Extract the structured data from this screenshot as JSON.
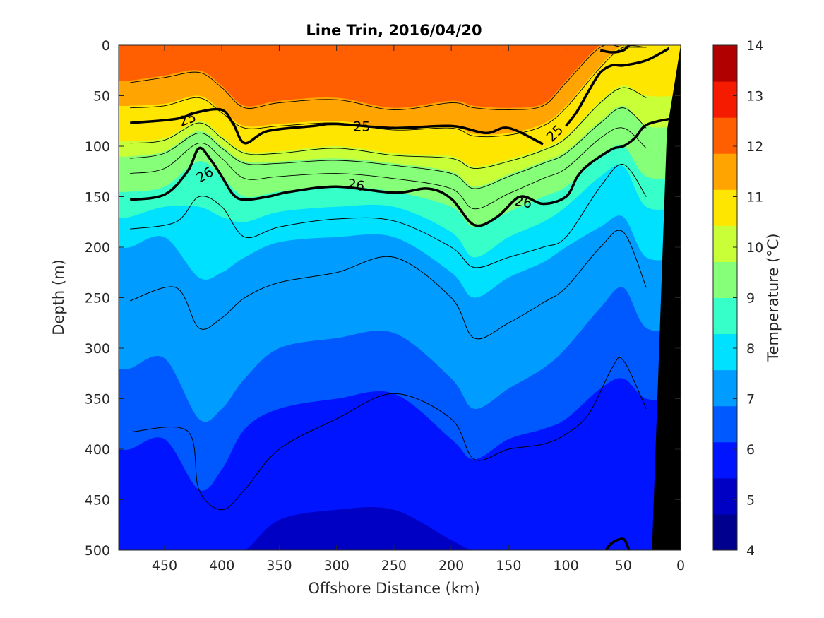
{
  "chart_data": {
    "type": "contour",
    "title": "Line Trin, 2016/04/20",
    "xlabel": "Offshore Distance (km)",
    "ylabel": "Depth (m)",
    "colorbar_label": "Temperature (°C)",
    "xlim": [
      490,
      0
    ],
    "ylim": [
      0,
      500
    ],
    "x_reversed": true,
    "y_reversed": true,
    "xticks": [
      "450",
      "400",
      "350",
      "300",
      "250",
      "200",
      "150",
      "100",
      "50",
      "0"
    ],
    "yticks": [
      "0",
      "50",
      "100",
      "150",
      "200",
      "250",
      "300",
      "350",
      "400",
      "450",
      "500"
    ],
    "colorbar_ticks": [
      "4",
      "5",
      "6",
      "7",
      "8",
      "9",
      "10",
      "11",
      "12",
      "13",
      "14"
    ],
    "colorbar_range": [
      4,
      14
    ],
    "colorbar_colors": [
      "#00008f",
      "#0000c4",
      "#0014ff",
      "#0059ff",
      "#009cff",
      "#00e0ff",
      "#36ffc9",
      "#86ff79",
      "#c9ff36",
      "#ffe600",
      "#ffa400",
      "#ff5f00",
      "#f51b00",
      "#b10000"
    ],
    "distance_km": [
      480,
      450,
      420,
      400,
      380,
      350,
      300,
      250,
      200,
      180,
      150,
      120,
      100,
      70,
      50,
      30
    ],
    "isotherm_depths_m": [
      {
        "temp": 5.5,
        "depths": [
          500,
          500,
          500,
          500,
          500,
          470,
          460,
          460,
          490,
          500,
          500,
          500,
          500,
          500,
          500,
          500
        ]
      },
      {
        "temp": 6.0,
        "depths": [
          465,
          450,
          470,
          460,
          440,
          420,
          410,
          410,
          440,
          460,
          440,
          430,
          430,
          450,
          460,
          470
        ]
      },
      {
        "temp": 6.5,
        "depths": [
          400,
          390,
          440,
          420,
          380,
          360,
          350,
          345,
          390,
          410,
          390,
          380,
          370,
          340,
          330,
          350
        ]
      },
      {
        "temp": 7.0,
        "depths": [
          320,
          310,
          370,
          360,
          330,
          300,
          290,
          285,
          330,
          360,
          340,
          320,
          300,
          260,
          240,
          280
        ]
      },
      {
        "temp": 7.5,
        "depths": [
          255,
          250,
          300,
          290,
          270,
          250,
          240,
          235,
          270,
          300,
          280,
          260,
          250,
          200,
          190,
          230
        ]
      },
      {
        "temp": 8.0,
        "depths": [
          200,
          190,
          230,
          225,
          210,
          195,
          190,
          190,
          225,
          250,
          230,
          215,
          200,
          180,
          170,
          210
        ]
      },
      {
        "temp": 8.5,
        "depths": [
          170,
          160,
          160,
          170,
          175,
          165,
          160,
          160,
          185,
          210,
          190,
          175,
          160,
          130,
          120,
          160
        ]
      },
      {
        "temp": 9.0,
        "depths": [
          145,
          140,
          115,
          130,
          150,
          145,
          140,
          145,
          160,
          180,
          165,
          150,
          140,
          110,
          100,
          130
        ]
      },
      {
        "temp": 9.5,
        "depths": [
          125,
          120,
          95,
          110,
          130,
          128,
          125,
          130,
          140,
          160,
          145,
          130,
          120,
          90,
          80,
          100
        ]
      },
      {
        "temp": 10.0,
        "depths": [
          110,
          105,
          85,
          100,
          115,
          115,
          112,
          117,
          125,
          140,
          128,
          115,
          105,
          75,
          60,
          80
        ]
      },
      {
        "temp": 10.5,
        "depths": [
          95,
          92,
          75,
          90,
          105,
          105,
          100,
          107,
          110,
          120,
          113,
          102,
          90,
          55,
          40,
          50
        ]
      },
      {
        "temp": 11.0,
        "depths": [
          80,
          78,
          65,
          80,
          95,
          92,
          90,
          95,
          95,
          105,
          100,
          90,
          75,
          40,
          20,
          25
        ]
      },
      {
        "temp": 11.5,
        "depths": [
          60,
          58,
          50,
          65,
          80,
          78,
          75,
          82,
          80,
          88,
          87,
          78,
          60,
          20,
          0,
          0
        ]
      },
      {
        "temp": 12.0,
        "depths": [
          35,
          30,
          25,
          40,
          60,
          55,
          52,
          62,
          55,
          60,
          62,
          58,
          35,
          0,
          0,
          0
        ]
      },
      {
        "temp": 12.5,
        "depths": [
          0,
          0,
          0,
          10,
          30,
          25,
          10,
          30,
          20,
          25,
          35,
          30,
          0,
          0,
          0,
          0
        ]
      },
      {
        "temp": 13.0,
        "depths": [
          0,
          0,
          0,
          0,
          0,
          0,
          0,
          0,
          0,
          0,
          0,
          0,
          0,
          0,
          0,
          0
        ]
      }
    ],
    "density_contours": [
      {
        "label": "25",
        "distance_km": [
          480,
          440,
          420,
          400,
          390,
          380,
          360,
          320,
          300,
          250,
          200,
          170,
          150,
          120
        ],
        "depth_m": [
          77,
          73,
          66,
          64,
          78,
          97,
          85,
          80,
          78,
          82,
          80,
          87,
          82,
          98
        ]
      },
      {
        "label": "25",
        "distance_km": [
          100,
          90,
          80,
          70,
          60,
          50,
          30,
          10
        ],
        "depth_m": [
          80,
          65,
          45,
          27,
          20,
          20,
          15,
          3
        ]
      },
      {
        "label": "26",
        "distance_km": [
          480,
          450,
          430,
          420,
          410,
          400,
          390,
          380,
          360,
          340,
          300,
          250,
          220,
          200,
          180,
          160,
          140,
          120,
          100,
          90,
          80,
          60,
          50,
          40,
          30,
          10
        ],
        "depth_m": [
          153,
          148,
          125,
          102,
          113,
          130,
          148,
          153,
          150,
          145,
          140,
          146,
          142,
          152,
          178,
          170,
          150,
          157,
          150,
          130,
          118,
          103,
          100,
          92,
          79,
          73
        ]
      },
      {
        "label": "",
        "distance_km": [
          70,
          60,
          50,
          45
        ],
        "depth_m": [
          5,
          7,
          5,
          0
        ]
      },
      {
        "label": "",
        "distance_km": [
          65,
          60,
          50,
          45
        ],
        "depth_m": [
          500,
          493,
          489,
          500
        ]
      }
    ],
    "sigma_contours_thin": [
      {
        "distance_km": [
          480,
          430,
          420,
          400,
          380,
          350,
          300,
          250,
          200,
          180,
          150,
          120,
          100,
          80,
          60,
          50,
          30
        ],
        "depth_m": [
          383,
          382,
          440,
          460,
          440,
          400,
          370,
          345,
          370,
          410,
          400,
          395,
          385,
          365,
          320,
          312,
          360
        ]
      },
      {
        "distance_km": [
          480,
          440,
          420,
          400,
          380,
          350,
          300,
          250,
          200,
          180,
          150,
          120,
          100,
          70,
          50,
          30
        ],
        "depth_m": [
          253,
          240,
          280,
          270,
          250,
          235,
          225,
          210,
          250,
          290,
          275,
          255,
          240,
          200,
          185,
          240
        ]
      },
      {
        "distance_km": [
          480,
          440,
          420,
          400,
          380,
          350,
          300,
          250,
          200,
          180,
          150,
          120,
          100,
          70,
          50,
          30
        ],
        "depth_m": [
          182,
          175,
          150,
          160,
          190,
          180,
          172,
          174,
          200,
          220,
          210,
          200,
          190,
          140,
          118,
          150
        ]
      }
    ],
    "contour_labels": [
      {
        "text": "25",
        "x": 430,
        "y": 73,
        "angle": -20
      },
      {
        "text": "25",
        "x": 278,
        "y": 80,
        "angle": 0
      },
      {
        "text": "25",
        "x": 110,
        "y": 87,
        "angle": -45
      },
      {
        "text": "26",
        "x": 415,
        "y": 128,
        "angle": -30
      },
      {
        "text": "26",
        "x": 283,
        "y": 138,
        "angle": 10
      },
      {
        "text": "26",
        "x": 137,
        "y": 155,
        "angle": 10
      }
    ],
    "land_mask": {
      "distance_km": [
        25,
        12,
        0,
        0
      ],
      "depth_m": [
        500,
        85,
        0,
        500
      ]
    },
    "colormap": "jet",
    "grid": false
  }
}
